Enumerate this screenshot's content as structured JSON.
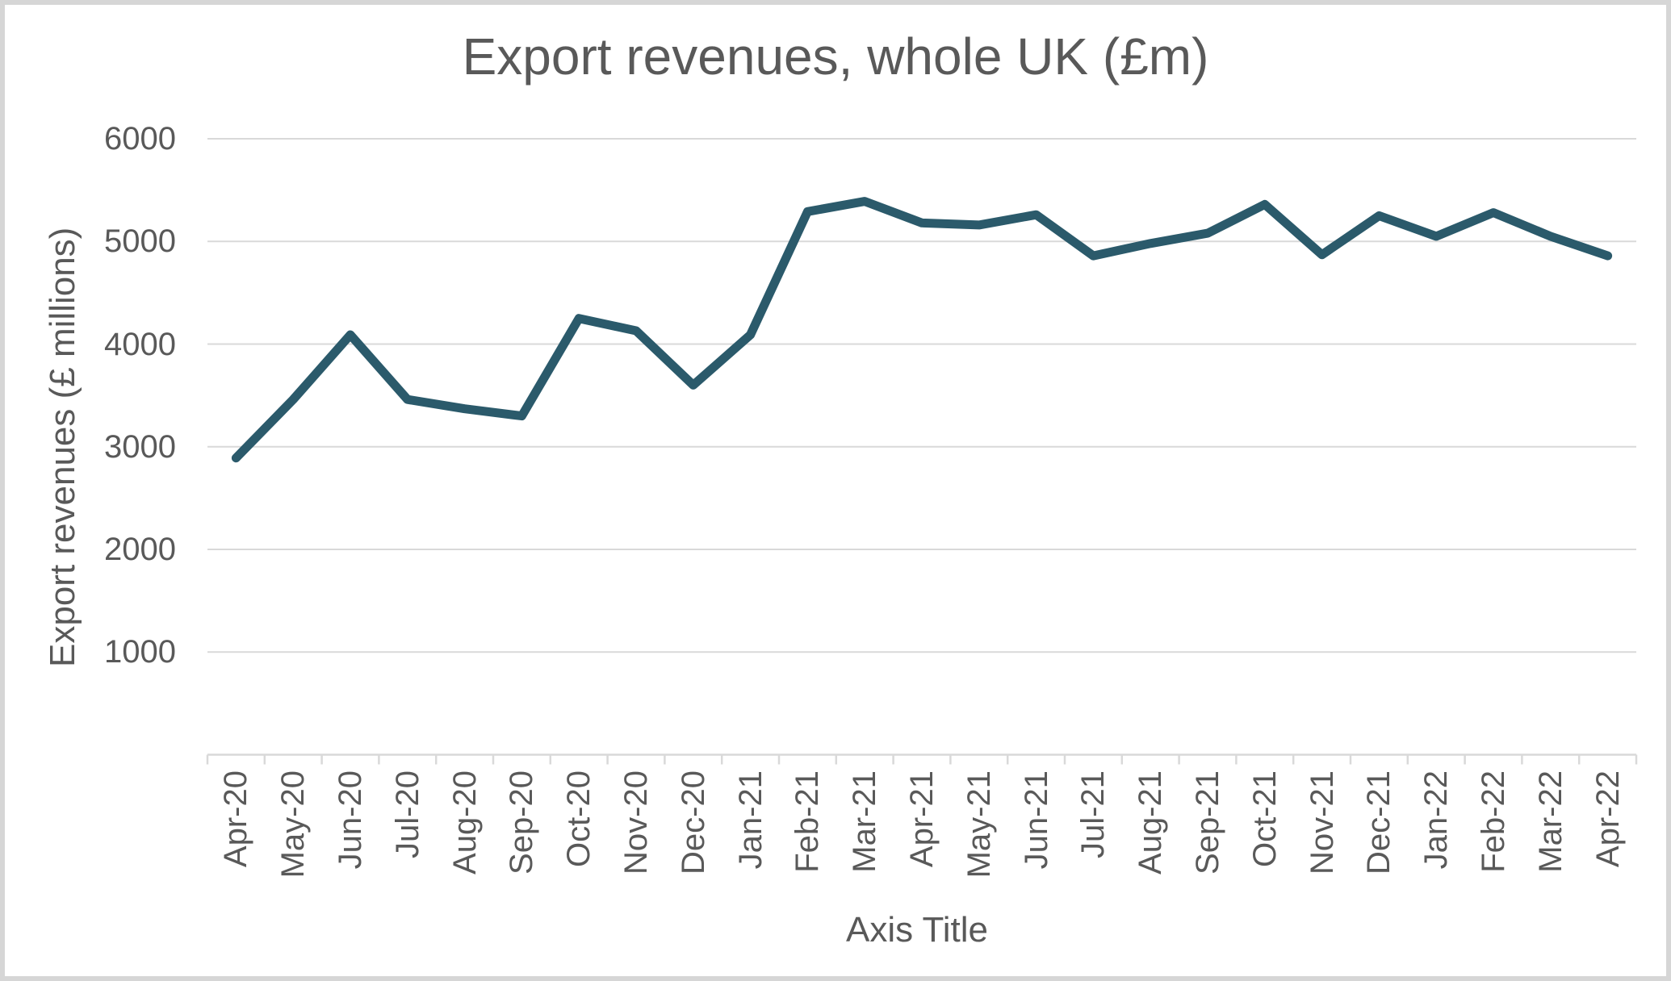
{
  "chart": {
    "title": "Export revenues, whole UK (£m)",
    "y_axis_title": "Export revenues (£ millions)",
    "x_axis_title": "Axis Title",
    "colors": {
      "line": "#2b5a6b",
      "grid": "#d9d9d9",
      "axis": "#d9d9d9",
      "text": "#595959",
      "frame_border": "#d6d6d6",
      "background": "#ffffff"
    }
  },
  "chart_data": {
    "type": "line",
    "title": "Export revenues, whole UK (£m)",
    "xlabel": "Axis Title",
    "ylabel": "Export revenues (£ millions)",
    "categories": [
      "Apr-20",
      "May-20",
      "Jun-20",
      "Jul-20",
      "Aug-20",
      "Sep-20",
      "Oct-20",
      "Nov-20",
      "Dec-20",
      "Jan-21",
      "Feb-21",
      "Mar-21",
      "Apr-21",
      "May-21",
      "Jun-21",
      "Jul-21",
      "Aug-21",
      "Sep-21",
      "Oct-21",
      "Nov-21",
      "Dec-21",
      "Jan-22",
      "Feb-22",
      "Mar-22",
      "Apr-22"
    ],
    "series": [
      {
        "name": "Export revenues",
        "values": [
          2890,
          3460,
          4090,
          3460,
          3370,
          3300,
          4250,
          4130,
          3600,
          4090,
          5290,
          5390,
          5180,
          5160,
          5260,
          4860,
          4980,
          5080,
          5360,
          4870,
          5250,
          5050,
          5280,
          5050,
          4860
        ]
      }
    ],
    "ylim": [
      0,
      6000
    ],
    "y_ticks": [
      1000,
      2000,
      3000,
      4000,
      5000,
      6000
    ],
    "grid": true,
    "legend_position": "none"
  }
}
